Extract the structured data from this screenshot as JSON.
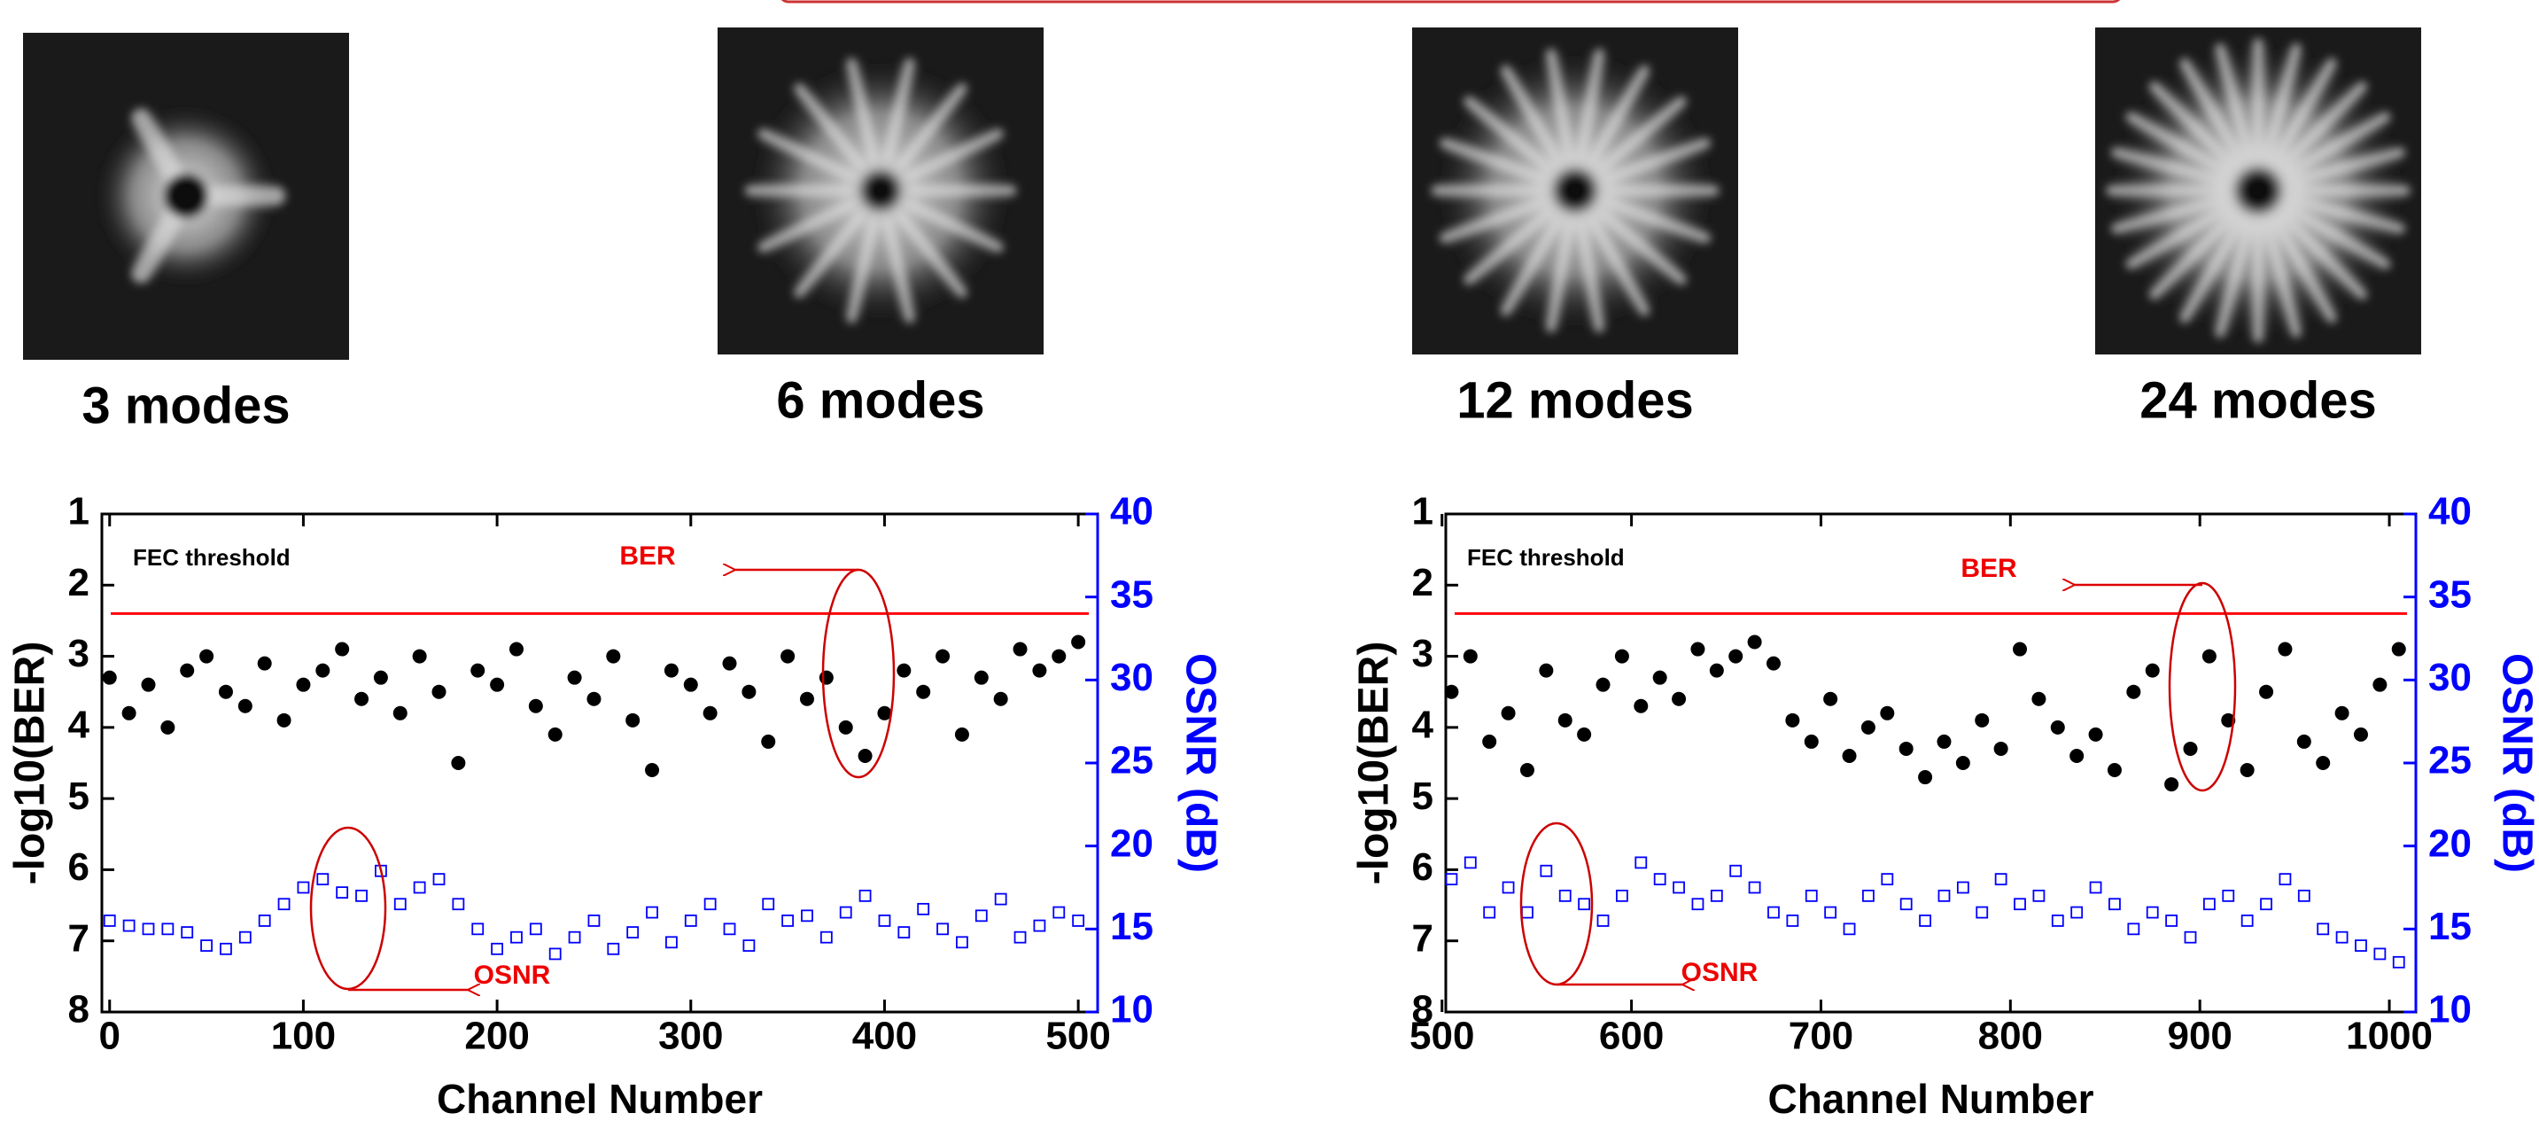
{
  "panels": [
    {
      "label": "3 modes"
    },
    {
      "label": "6 modes"
    },
    {
      "label": "12 modes"
    },
    {
      "label": "24 modes"
    }
  ],
  "chart_data": [
    {
      "type": "scatter",
      "xlabel": "Channel Number",
      "ylabel": "-log10(BER)",
      "y2label": "OSNR (dB)",
      "fec_label": "FEC threshold",
      "fec_threshold": 2.4,
      "fec_color": "#ff0000",
      "ber_label": "BER",
      "osnr_label": "OSNR",
      "xlim": [
        -4,
        510
      ],
      "xticks": [
        0,
        100,
        200,
        300,
        400,
        500
      ],
      "ylim": [
        8,
        1
      ],
      "yticks": [
        1,
        2,
        3,
        4,
        5,
        6,
        7,
        8
      ],
      "y2lim": [
        10,
        40
      ],
      "y2ticks": [
        10,
        15,
        20,
        25,
        30,
        35,
        40
      ],
      "y2color": "#0000ff",
      "x": [
        0,
        10,
        20,
        30,
        40,
        50,
        60,
        70,
        80,
        90,
        100,
        110,
        120,
        130,
        140,
        150,
        160,
        170,
        180,
        190,
        200,
        210,
        220,
        230,
        240,
        250,
        260,
        270,
        280,
        290,
        300,
        310,
        320,
        330,
        340,
        350,
        360,
        370,
        380,
        390,
        400,
        410,
        420,
        430,
        440,
        450,
        460,
        470,
        480,
        490,
        500
      ],
      "series": [
        {
          "name": "BER",
          "color": "#000000",
          "marker": "circle",
          "values": [
            3.3,
            3.8,
            3.4,
            4.0,
            3.2,
            3.0,
            3.5,
            3.7,
            3.1,
            3.9,
            3.4,
            3.2,
            2.9,
            3.6,
            3.3,
            3.8,
            3.0,
            3.5,
            4.5,
            3.2,
            3.4,
            2.9,
            3.7,
            4.1,
            3.3,
            3.6,
            3.0,
            3.9,
            4.6,
            3.2,
            3.4,
            3.8,
            3.1,
            3.5,
            4.2,
            3.0,
            3.6,
            3.3,
            4.0,
            4.4,
            3.8,
            3.2,
            3.5,
            3.0,
            4.1,
            3.3,
            3.6,
            2.9,
            3.2,
            3.0,
            2.8
          ]
        },
        {
          "name": "OSNR",
          "color": "#0000ff",
          "marker": "square",
          "axis": "y2",
          "values": [
            15.5,
            15.2,
            15,
            15,
            14.8,
            14,
            13.8,
            14.5,
            15.5,
            16.5,
            17.5,
            18,
            17.2,
            17,
            18.5,
            16.5,
            17.5,
            18,
            16.5,
            15,
            13.8,
            14.5,
            15,
            13.5,
            14.5,
            15.5,
            13.8,
            14.8,
            16,
            14.2,
            15.5,
            16.5,
            15,
            14,
            16.5,
            15.5,
            15.8,
            14.5,
            16,
            17,
            15.5,
            14.8,
            16.2,
            15,
            14.2,
            15.8,
            16.8,
            14.5,
            15.2,
            16,
            15.5
          ]
        }
      ]
    },
    {
      "type": "scatter",
      "xlabel": "Channel Number",
      "ylabel": "-log10(BER)",
      "y2label": "OSNR (dB)",
      "fec_label": "FEC threshold",
      "fec_threshold": 2.4,
      "fec_color": "#ff0000",
      "ber_label": "BER",
      "osnr_label": "OSNR",
      "xlim": [
        502,
        1014
      ],
      "xticks": [
        500,
        600,
        700,
        800,
        900,
        1000
      ],
      "ylim": [
        8,
        1
      ],
      "yticks": [
        1,
        2,
        3,
        4,
        5,
        6,
        7,
        8
      ],
      "y2lim": [
        10,
        40
      ],
      "y2ticks": [
        10,
        15,
        20,
        25,
        30,
        35,
        40
      ],
      "y2color": "#0000ff",
      "x": [
        505,
        515,
        525,
        535,
        545,
        555,
        565,
        575,
        585,
        595,
        605,
        615,
        625,
        635,
        645,
        655,
        665,
        675,
        685,
        695,
        705,
        715,
        725,
        735,
        745,
        755,
        765,
        775,
        785,
        795,
        805,
        815,
        825,
        835,
        845,
        855,
        865,
        875,
        885,
        895,
        905,
        915,
        925,
        935,
        945,
        955,
        965,
        975,
        985,
        995,
        1005
      ],
      "series": [
        {
          "name": "BER",
          "color": "#000000",
          "marker": "circle",
          "values": [
            3.5,
            3.0,
            4.2,
            3.8,
            4.6,
            3.2,
            3.9,
            4.1,
            3.4,
            3.0,
            3.7,
            3.3,
            3.6,
            2.9,
            3.2,
            3.0,
            2.8,
            3.1,
            3.9,
            4.2,
            3.6,
            4.4,
            4.0,
            3.8,
            4.3,
            4.7,
            4.2,
            4.5,
            3.9,
            4.3,
            2.9,
            3.6,
            4.0,
            4.4,
            4.1,
            4.6,
            3.5,
            3.2,
            4.8,
            4.3,
            3.0,
            3.9,
            4.6,
            3.5,
            2.9,
            4.2,
            4.5,
            3.8,
            4.1,
            3.4,
            2.9
          ]
        },
        {
          "name": "OSNR",
          "color": "#0000ff",
          "marker": "square",
          "axis": "y2",
          "values": [
            18,
            19,
            16,
            17.5,
            16,
            18.5,
            17,
            16.5,
            15.5,
            17,
            19,
            18,
            17.5,
            16.5,
            17,
            18.5,
            17.5,
            16,
            15.5,
            17,
            16,
            15,
            17,
            18,
            16.5,
            15.5,
            17,
            17.5,
            16,
            18,
            16.5,
            17,
            15.5,
            16,
            17.5,
            16.5,
            15,
            16,
            15.5,
            14.5,
            16.5,
            17,
            15.5,
            16.5,
            18,
            17,
            15,
            14.5,
            14,
            13.5,
            13
          ]
        }
      ]
    }
  ]
}
